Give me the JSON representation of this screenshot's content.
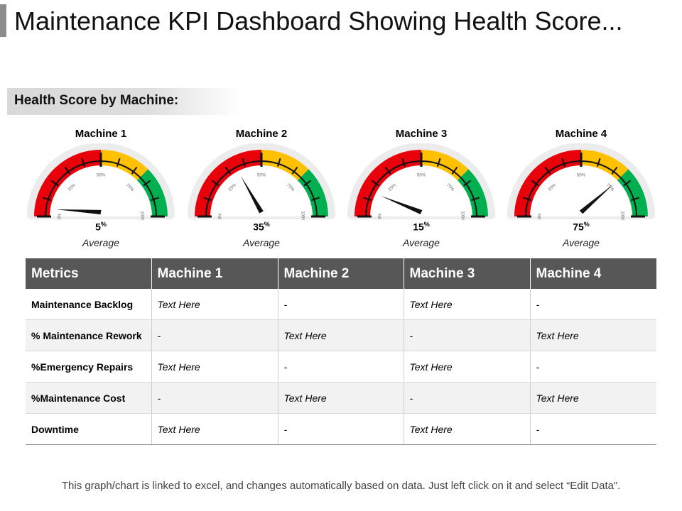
{
  "title": "Maintenance KPI Dashboard Showing Health Score...",
  "section_title": "Health Score by Machine:",
  "gauge_ticks": [
    "0%",
    "25%",
    "50%",
    "75%",
    "100%"
  ],
  "gauges": [
    {
      "name": "Machine 1",
      "value": 5,
      "value_text": "5",
      "unit": "%",
      "caption": "Average"
    },
    {
      "name": "Machine 2",
      "value": 35,
      "value_text": "35",
      "unit": "%",
      "caption": "Average"
    },
    {
      "name": "Machine 3",
      "value": 15,
      "value_text": "15",
      "unit": "%",
      "caption": "Average"
    },
    {
      "name": "Machine 4",
      "value": 75,
      "value_text": "75",
      "unit": "%",
      "caption": "Average"
    }
  ],
  "colors": {
    "red": "#e8000b",
    "yellow": "#ffc000",
    "green": "#00b050",
    "header_bg": "#575757"
  },
  "table": {
    "headers": [
      "Metrics",
      "Machine 1",
      "Machine 2",
      "Machine 3",
      "Machine 4"
    ],
    "rows": [
      {
        "metric": "Maintenance Backlog",
        "cells": [
          "Text Here",
          "-",
          "Text Here",
          "-"
        ]
      },
      {
        "metric": "% Maintenance Rework",
        "cells": [
          "-",
          "Text Here",
          "-",
          "Text Here"
        ]
      },
      {
        "metric": "%Emergency Repairs",
        "cells": [
          "Text Here",
          "-",
          "Text Here",
          "-"
        ]
      },
      {
        "metric": "%Maintenance Cost",
        "cells": [
          "-",
          "Text Here",
          "-",
          "Text Here"
        ]
      },
      {
        "metric": "Downtime",
        "cells": [
          "Text Here",
          "-",
          "Text Here",
          "-"
        ]
      }
    ]
  },
  "footer": "This graph/chart is linked to excel, and changes automatically based on data. Just left click on it and select “Edit Data”."
}
